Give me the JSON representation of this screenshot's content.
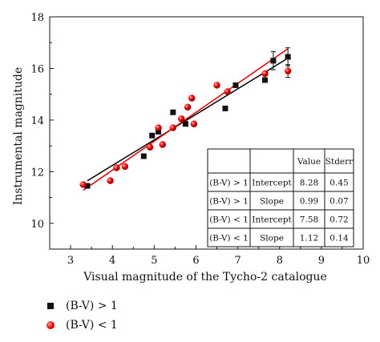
{
  "chart_data": {
    "type": "scatter",
    "xlabel": "Visual magnitude of the Tycho-2 catalogue",
    "ylabel": "Instrumental magnitude",
    "xlim": [
      2.5,
      10
    ],
    "ylim": [
      9,
      18
    ],
    "xticks": [
      "3",
      "4",
      "5",
      "6",
      "7",
      "8",
      "9",
      "10"
    ],
    "yticks": [
      "10",
      "12",
      "14",
      "16",
      "18"
    ],
    "grid": false,
    "legend_position": "bottom-left",
    "series": [
      {
        "name": "(B-V) > 1",
        "marker": "square",
        "color": "#000000",
        "points": [
          {
            "x": 3.4,
            "y": 11.45
          },
          {
            "x": 4.75,
            "y": 12.6
          },
          {
            "x": 4.95,
            "y": 13.4
          },
          {
            "x": 5.1,
            "y": 13.55
          },
          {
            "x": 5.45,
            "y": 14.3
          },
          {
            "x": 5.75,
            "y": 13.85
          },
          {
            "x": 6.7,
            "y": 14.45
          },
          {
            "x": 6.95,
            "y": 15.35
          },
          {
            "x": 7.65,
            "y": 15.55
          },
          {
            "x": 7.85,
            "y": 16.3,
            "err": 0.35
          },
          {
            "x": 8.2,
            "y": 16.45,
            "err": 0.35
          }
        ],
        "fit": {
          "intercept": 8.28,
          "slope": 0.99,
          "x_range": [
            3.4,
            8.2
          ]
        }
      },
      {
        "name": "(B-V) < 1",
        "marker": "circle",
        "color": "#e00000",
        "points": [
          {
            "x": 3.3,
            "y": 11.5
          },
          {
            "x": 3.95,
            "y": 11.65
          },
          {
            "x": 4.1,
            "y": 12.15
          },
          {
            "x": 4.3,
            "y": 12.2
          },
          {
            "x": 4.9,
            "y": 12.95
          },
          {
            "x": 5.1,
            "y": 13.7
          },
          {
            "x": 5.2,
            "y": 13.05
          },
          {
            "x": 5.45,
            "y": 13.7
          },
          {
            "x": 5.65,
            "y": 14.05
          },
          {
            "x": 5.8,
            "y": 14.5
          },
          {
            "x": 5.9,
            "y": 14.85
          },
          {
            "x": 5.95,
            "y": 13.85
          },
          {
            "x": 6.5,
            "y": 15.35
          },
          {
            "x": 6.75,
            "y": 15.1
          },
          {
            "x": 7.65,
            "y": 15.8
          },
          {
            "x": 8.2,
            "y": 15.9,
            "err": 0.25
          }
        ],
        "fit": {
          "intercept": 7.58,
          "slope": 1.12,
          "x_range": [
            3.3,
            8.2
          ]
        }
      }
    ],
    "table": {
      "headers": [
        "",
        "",
        "Value",
        "Stderr"
      ],
      "rows": [
        [
          "(B-V) > 1",
          "Intercept",
          "8.28",
          "0.45"
        ],
        [
          "(B-V) > 1",
          "Slope",
          "0.99",
          "0.07"
        ],
        [
          "(B-V) < 1",
          "Intercept",
          "7.58",
          "0.72"
        ],
        [
          "(B-V) < 1",
          "Slope",
          "1.12",
          "0.14"
        ]
      ]
    }
  },
  "legend": {
    "items": [
      {
        "label": "(B-V) > 1"
      },
      {
        "label": "(B-V) < 1"
      }
    ]
  }
}
